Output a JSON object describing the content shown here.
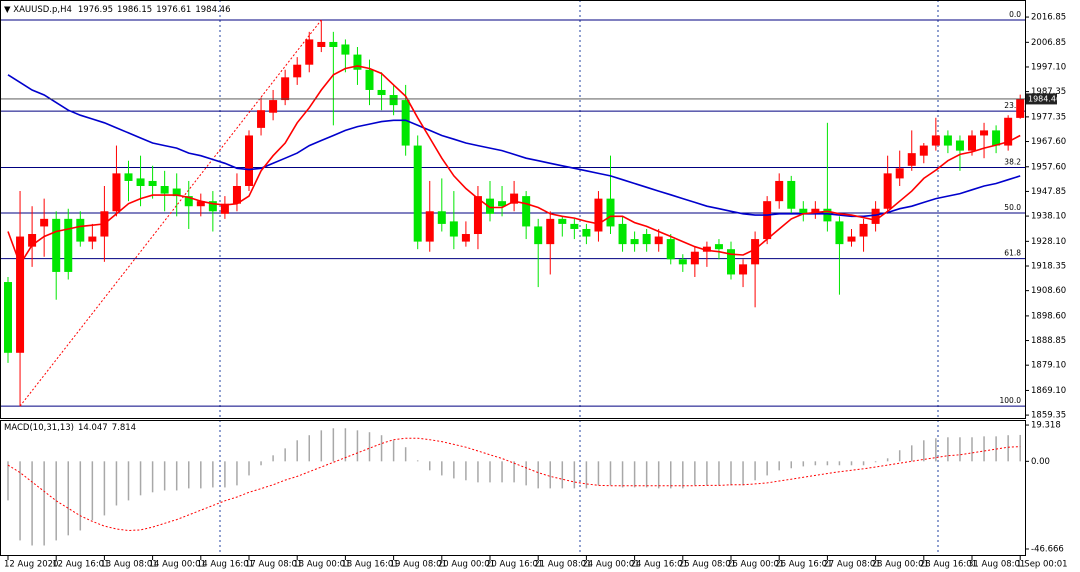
{
  "chart_data": [
    {
      "type": "candlestick",
      "title": "XAUUSD.p,H4",
      "categories": [
        "12 Aug 2020",
        null,
        null,
        null,
        "12 Aug 16:01",
        null,
        null,
        null,
        "13 Aug 08:01",
        null,
        null,
        null,
        "14 Aug 00:01",
        null,
        null,
        null,
        "14 Aug 16:01",
        null,
        null,
        null,
        "17 Aug 08:01",
        null,
        null,
        null,
        "18 Aug 00:01",
        null,
        null,
        null,
        "18 Aug 16:01",
        null,
        null,
        null,
        "19 Aug 08:01",
        null,
        null,
        null,
        "20 Aug 00:01",
        null,
        null,
        null,
        "20 Aug 16:01",
        null,
        null,
        null,
        "21 Aug 08:01",
        null,
        null,
        null,
        "24 Aug 00:01",
        null,
        null,
        null,
        "24 Aug 16:01",
        null,
        null,
        null,
        "25 Aug 08:01",
        null,
        null,
        null,
        "26 Aug 00:01",
        null,
        null,
        null,
        "26 Aug 16:01",
        null,
        null,
        null,
        "27 Aug 08:01",
        null,
        null,
        null,
        "28 Aug 00:01",
        null,
        null,
        null,
        "28 Aug 16:01",
        null,
        null,
        null,
        "31 Aug 08:01",
        null,
        null,
        null,
        "1 Sep 00:01"
      ],
      "open": [
        1912,
        1884,
        1926,
        1934,
        1937,
        1937,
        1937,
        1928,
        1930,
        1940,
        1955,
        1953,
        1952,
        1950,
        1949,
        1946,
        1942,
        1944,
        1939,
        1943,
        1950,
        1973,
        1979,
        1984,
        1993,
        1998,
        2005,
        2007,
        2006,
        2002,
        1996,
        1988,
        1986,
        1984,
        1966,
        1928,
        1940,
        1936,
        1928,
        1931,
        1945,
        1944,
        1943,
        1946,
        1934,
        1927,
        1937,
        1935,
        1933,
        1932,
        1945,
        1935,
        1929,
        1931,
        1927,
        1929,
        1921,
        1919,
        1924,
        1927,
        1925,
        1915,
        1919,
        1929,
        1944,
        1952,
        1941,
        1939,
        1941,
        1936,
        1928,
        1930,
        1935,
        1941,
        1953,
        1958,
        1962,
        1966,
        1970,
        1968,
        1964,
        1970,
        1972,
        1966,
        1976.95
      ],
      "high": [
        1914,
        1948,
        1942,
        1945,
        1940,
        1941,
        1940,
        1935,
        1950,
        1966,
        1960,
        1962,
        1958,
        1956,
        1955,
        1952,
        1947,
        1948,
        1946,
        1955,
        1972,
        1985,
        1988,
        1996,
        2001,
        2011,
        2015.7,
        2011,
        2008,
        2005,
        2000,
        1995,
        1990,
        1990,
        1970,
        1952,
        1953,
        1948,
        1936,
        1950,
        1952,
        1950,
        1952,
        1948,
        1937,
        1940,
        1938,
        1937,
        1935,
        1948,
        1962,
        1938,
        1932,
        1933,
        1933,
        1931,
        1923,
        1926,
        1928,
        1929,
        1928,
        1921,
        1932,
        1946,
        1955,
        1954,
        1944,
        1944,
        1975,
        1938,
        1933,
        1937,
        1944,
        1962,
        1964,
        1972,
        1967,
        1977,
        1972,
        1970,
        1972,
        1975,
        1974,
        1978,
        1986.15
      ],
      "low": [
        1880,
        1862.9,
        1918,
        1922,
        1905,
        1913,
        1926,
        1925,
        1920,
        1938,
        1944,
        1942,
        1945,
        1940,
        1938,
        1933,
        1938,
        1932,
        1937,
        1940,
        1948,
        1970,
        1976,
        1982,
        1990,
        1995,
        2003,
        1974,
        1995,
        1990,
        1982,
        1980,
        1978,
        1962,
        1925,
        1924,
        1932,
        1925,
        1926,
        1925,
        1936,
        1938,
        1940,
        1929,
        1910,
        1915,
        1930,
        1929,
        1927,
        1928,
        1931,
        1924,
        1924,
        1924,
        1924,
        1919,
        1916,
        1914,
        1918,
        1921,
        1913,
        1910,
        1902,
        1927,
        1941,
        1939,
        1936,
        1937,
        1932,
        1907,
        1926,
        1924,
        1932,
        1939,
        1950,
        1956,
        1959,
        1964,
        1963,
        1956,
        1962,
        1961,
        1963,
        1964,
        1976.61
      ],
      "close": [
        1884,
        1930,
        1931,
        1937,
        1916,
        1916,
        1928,
        1930,
        1940,
        1955,
        1952,
        1950,
        1950,
        1947,
        1946,
        1942,
        1944,
        1940,
        1943,
        1950,
        1970,
        1980,
        1984,
        1993,
        1998,
        2008,
        2007,
        2005,
        2002,
        1996,
        1988,
        1986,
        1982,
        1966,
        1928,
        1940,
        1935,
        1930,
        1931,
        1946,
        1939,
        1942,
        1947,
        1934,
        1927,
        1937,
        1935,
        1933,
        1930,
        1945,
        1934,
        1927,
        1927,
        1927,
        1930,
        1921,
        1919,
        1924,
        1926,
        1925,
        1915,
        1919,
        1929,
        1944,
        1952,
        1941,
        1939,
        1941,
        1936,
        1927,
        1930,
        1935,
        1941,
        1955,
        1957,
        1963,
        1966,
        1970,
        1966,
        1964,
        1970,
        1972,
        1966,
        1977,
        1984.46
      ],
      "up_color": "#ff0000",
      "down_color": "#00e600",
      "moving_averages": [
        {
          "color": "#0000cc",
          "values": [
            1994,
            1991,
            1988,
            1986,
            1983,
            1980,
            1978,
            1976.5,
            1975,
            1973,
            1971,
            1969,
            1967,
            1966,
            1965,
            1963,
            1962,
            1960.5,
            1959,
            1957,
            1956.5,
            1957,
            1959,
            1961,
            1963,
            1966,
            1968,
            1970,
            1972,
            1973.5,
            1974.5,
            1975.5,
            1976,
            1976,
            1974,
            1972,
            1970,
            1968.5,
            1967,
            1966,
            1965,
            1964,
            1962.5,
            1961,
            1960,
            1959,
            1958,
            1957,
            1956,
            1955,
            1954,
            1952.5,
            1951,
            1949.5,
            1948,
            1946.5,
            1945,
            1943.5,
            1942,
            1941,
            1940,
            1939,
            1938.5,
            1938.5,
            1939,
            1939,
            1939,
            1939,
            1939,
            1938.5,
            1938,
            1938,
            1938.5,
            1939.5,
            1941,
            1942,
            1943.5,
            1945,
            1946,
            1947,
            1948.5,
            1950,
            1951,
            1952.5,
            1954
          ]
        },
        {
          "color": "#ff0000",
          "values": [
            1932,
            1919,
            1926.6,
            1930,
            1932,
            1933,
            1934,
            1934.5,
            1935,
            1939,
            1943,
            1945,
            1946.4,
            1946.4,
            1946.4,
            1945.5,
            1944,
            1943,
            1942.5,
            1943,
            1946,
            1956,
            1962,
            1967,
            1975,
            1981,
            1988,
            1994,
            1996.5,
            1997.5,
            1996.5,
            1994.5,
            1990,
            1985.5,
            1977,
            1969,
            1961,
            1954,
            1949,
            1945,
            1941.5,
            1941.5,
            1944,
            1943,
            1941.5,
            1939,
            1938,
            1937.3,
            1936,
            1935,
            1938,
            1938,
            1935.5,
            1934,
            1932,
            1930,
            1928,
            1926,
            1924.5,
            1924,
            1923,
            1922.7,
            1925,
            1929,
            1933,
            1937,
            1939,
            1939.5,
            1940,
            1939,
            1938.5,
            1937.5,
            1936.5,
            1940,
            1944,
            1948,
            1953,
            1956.3,
            1960,
            1962.5,
            1963.5,
            1965,
            1966.2,
            1967.5,
            1970
          ]
        }
      ],
      "fibonacci": {
        "color": "#ff0000",
        "line_color": "#000080",
        "levels": [
          {
            "label": "0.0",
            "price": 2015.7
          },
          {
            "label": "23.6",
            "price": 1979.64
          },
          {
            "label": "38.2",
            "price": 1957.33
          },
          {
            "label": "50.0",
            "price": 1939.3
          },
          {
            "label": "61.8",
            "price": 1921.27
          },
          {
            "label": "100.0",
            "price": 1862.9
          }
        ]
      },
      "ylim": [
        1858.2,
        2023.6
      ],
      "yticks": [
        2016.85,
        2006.85,
        {
          "value": 1997.1,
          "label": "1997.10"
        },
        1987.35,
        1977.35,
        {
          "value": 1967.6,
          "label": "1967.60"
        },
        {
          "value": 1957.6,
          "label": "1957.60"
        },
        1947.85,
        {
          "value": 1938.1,
          "label": "1938.10"
        },
        {
          "value": 1928.1,
          "label": "1928.10"
        },
        1918.35,
        {
          "value": 1908.6,
          "label": "1908.60"
        },
        {
          "value": 1898.6,
          "label": "1898.60"
        },
        1888.85,
        {
          "value": 1879.1,
          "label": "1879.10"
        },
        {
          "value": 1869.1,
          "label": "1869.10"
        },
        1859.35
      ]
    },
    {
      "type": "macd",
      "title": "MACD(10,31,13)",
      "histogram": [
        -20.8,
        -42.1,
        -44.8,
        -44.8,
        -42.1,
        -39.4,
        -36.8,
        -31.4,
        -28.8,
        -23.5,
        -20.8,
        -18.1,
        -16.5,
        -15.5,
        -15.5,
        -14.4,
        -14.4,
        -13.9,
        -13.9,
        -12.8,
        -7.5,
        -2.1,
        3.2,
        6.9,
        11.2,
        13.9,
        16.5,
        17.6,
        17.6,
        16.5,
        15.5,
        13.9,
        11.2,
        7.5,
        0.5,
        -4.8,
        -7.5,
        -9.1,
        -10.1,
        -11.2,
        -11.2,
        -11.2,
        -11.2,
        -12.8,
        -14.4,
        -14.4,
        -14.4,
        -14.4,
        -14.4,
        -12.8,
        -12.8,
        -13.9,
        -13.9,
        -13.9,
        -14.4,
        -14.4,
        -14.4,
        -12.8,
        -12.8,
        -12.8,
        -12.8,
        -12.8,
        -10.1,
        -7.5,
        -4.8,
        -3.7,
        -2.7,
        -2.1,
        -2.1,
        -2.1,
        -2.1,
        -2.1,
        -0.5,
        1.6,
        5.9,
        8.5,
        11.2,
        12.3,
        12.8,
        12.8,
        12.8,
        13.3,
        13.3,
        13.9,
        14.047
      ],
      "signal": [
        -2,
        -6,
        -11,
        -16,
        -21,
        -25,
        -29,
        -32,
        -34.5,
        -36,
        -36.8,
        -36.5,
        -35,
        -33,
        -31,
        -28.5,
        -26,
        -23.5,
        -21,
        -19,
        -16.5,
        -14.5,
        -12.5,
        -10,
        -8,
        -5.5,
        -3,
        -0.5,
        2,
        4.5,
        7,
        9.5,
        11.5,
        12.3,
        12.3,
        11.5,
        10.5,
        9,
        7.5,
        5.5,
        3.5,
        1.5,
        -1,
        -3.5,
        -6,
        -8,
        -9.5,
        -11,
        -12,
        -12.8,
        -13,
        -13,
        -13,
        -13,
        -13,
        -13,
        -13,
        -13,
        -12.8,
        -12.8,
        -12.5,
        -12.5,
        -12,
        -11.5,
        -10.5,
        -9.5,
        -8.5,
        -7.5,
        -6.5,
        -5.5,
        -4.8,
        -4,
        -3,
        -2,
        -1,
        0,
        1,
        2,
        3,
        3.5,
        4.5,
        5.5,
        6.5,
        7.5,
        7.814
      ],
      "color": "#a8a8a8",
      "signal_color": "#ff0000",
      "ylim": [
        -50.4,
        22.0
      ],
      "yticks": [
        19.318,
        {
          "value": 0,
          "label": "0.00"
        },
        -46.666
      ]
    }
  ]
}
